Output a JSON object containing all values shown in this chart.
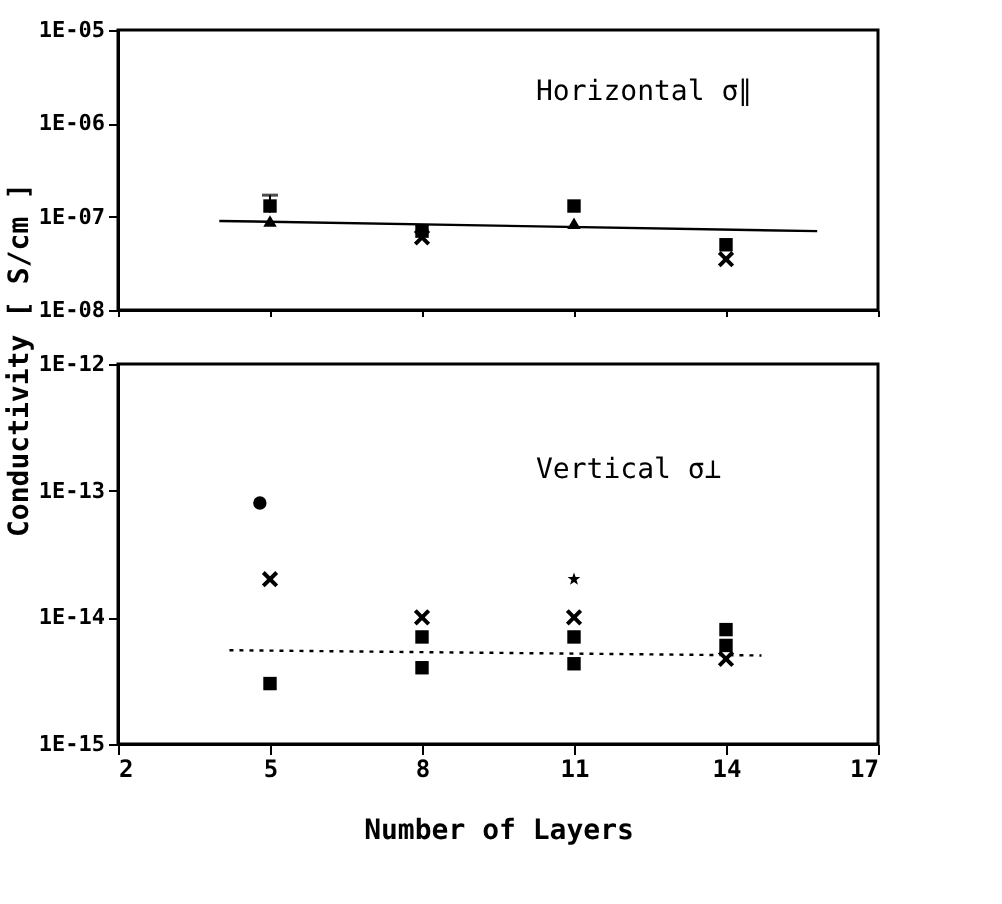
{
  "chart_data": [
    {
      "type": "scatter",
      "ylabel": "Conductivity [ S/cm ]",
      "xlim": [
        2,
        17
      ],
      "xticks": [
        2,
        5,
        8,
        11,
        14,
        17
      ],
      "tick_labels": "y",
      "log": true,
      "ylim": [
        1e-08,
        1e-05
      ],
      "yticks": [
        {
          "value": 1e-08,
          "label": "1E-08"
        },
        {
          "value": 1e-07,
          "label": "1E-07"
        },
        {
          "value": 1e-06,
          "label": "1E-06"
        },
        {
          "value": 1e-05,
          "label": "1E-05"
        }
      ],
      "annotations": [
        "Horizontal σ∥"
      ],
      "series": [
        {
          "marker": "square",
          "color": "#000000",
          "x": [
            5,
            8,
            11,
            14
          ],
          "values": [
            1.3e-07,
            7e-08,
            1.3e-07,
            5e-08
          ],
          "errors": [
            [
              1.1e-07,
              1.7e-07
            ],
            null,
            null,
            null
          ]
        },
        {
          "marker": "triangle",
          "color": "#000000",
          "x": [
            5,
            11
          ],
          "values": [
            9e-08,
            8.5e-08
          ]
        },
        {
          "marker": "cross",
          "color": "#000000",
          "x": [
            8,
            14
          ],
          "values": [
            6e-08,
            3.5e-08
          ]
        },
        {
          "type": "line",
          "line_style": "solid",
          "color": "#000000",
          "x": [
            4,
            15.8
          ],
          "values": [
            9e-08,
            7e-08
          ]
        }
      ]
    },
    {
      "type": "scatter",
      "xlabel": "Number of Layers",
      "xlim": [
        2,
        17
      ],
      "xticks": [
        2,
        5,
        8,
        11,
        14,
        17
      ],
      "log": true,
      "ylim": [
        1e-15,
        1e-12
      ],
      "yticks": [
        {
          "value": 1e-15,
          "label": "1E-15"
        },
        {
          "value": 1e-14,
          "label": "1E-14"
        },
        {
          "value": 1e-13,
          "label": "1E-13"
        },
        {
          "value": 1e-12,
          "label": "1E-12"
        }
      ],
      "annotations": [
        "Vertical σ⊥"
      ],
      "series": [
        {
          "marker": "square",
          "color": "#000000",
          "x": [
            5,
            8,
            11,
            14
          ],
          "values": [
            3e-15,
            7e-15,
            4.3e-15,
            6e-15
          ]
        },
        {
          "marker": "square",
          "color": "#000000",
          "x": [
            8,
            11,
            14
          ],
          "values": [
            4e-15,
            7e-15,
            8e-15
          ]
        },
        {
          "marker": "circle",
          "color": "#000000",
          "x": [
            4.8
          ],
          "values": [
            8e-14
          ]
        },
        {
          "marker": "cross",
          "color": "#000000",
          "x": [
            5,
            8,
            11,
            14
          ],
          "values": [
            2e-14,
            1e-14,
            1e-14,
            4.7e-15
          ]
        },
        {
          "marker": "star",
          "color": "#000000",
          "x": [
            11
          ],
          "values": [
            2e-14
          ]
        },
        {
          "type": "line",
          "line_style": "dotted",
          "color": "#000000",
          "x": [
            4.2,
            14.7
          ],
          "values": [
            5.5e-15,
            5e-15
          ]
        }
      ]
    }
  ]
}
